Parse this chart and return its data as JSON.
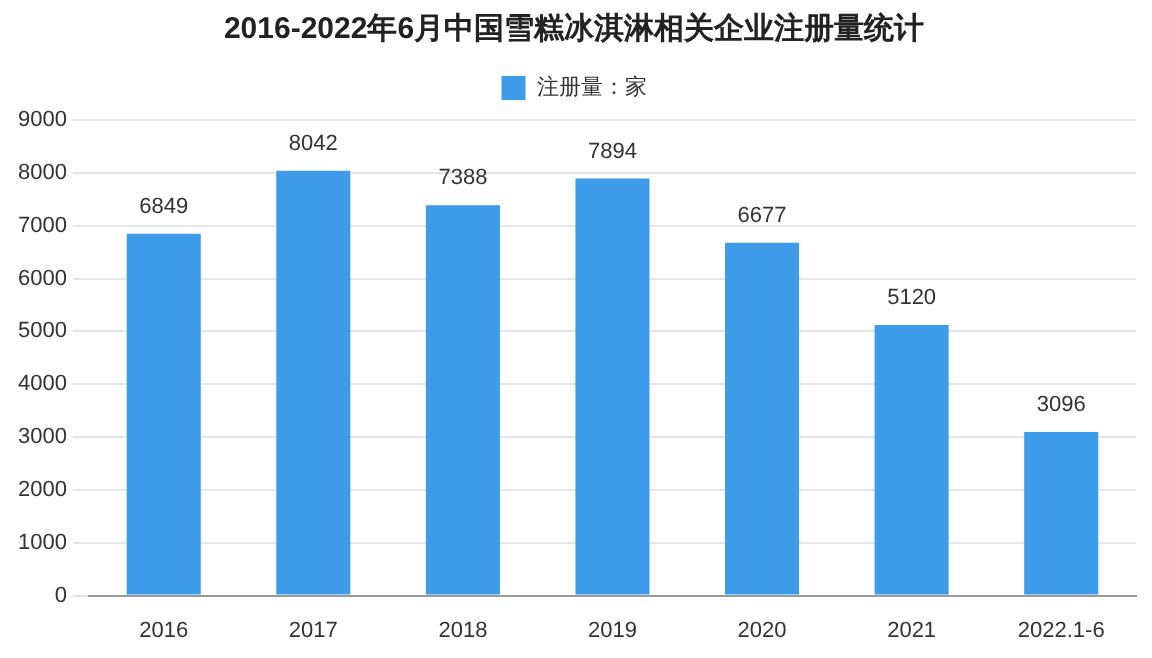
{
  "chart_data": {
    "type": "bar",
    "title": "2016-2022年6月中国雪糕冰淇淋相关企业注册量统计",
    "categories": [
      "2016",
      "2017",
      "2018",
      "2019",
      "2020",
      "2021",
      "2022.1-6"
    ],
    "series": [
      {
        "name": "注册量：家",
        "color": "#3d9be9",
        "values": [
          6849,
          8042,
          7388,
          7894,
          6677,
          5120,
          3096
        ]
      }
    ],
    "ylim": [
      0,
      9000
    ],
    "yticks": [
      0,
      1000,
      2000,
      3000,
      4000,
      5000,
      6000,
      7000,
      8000,
      9000
    ],
    "grid": "y",
    "legend": "top",
    "data_labels": true
  }
}
